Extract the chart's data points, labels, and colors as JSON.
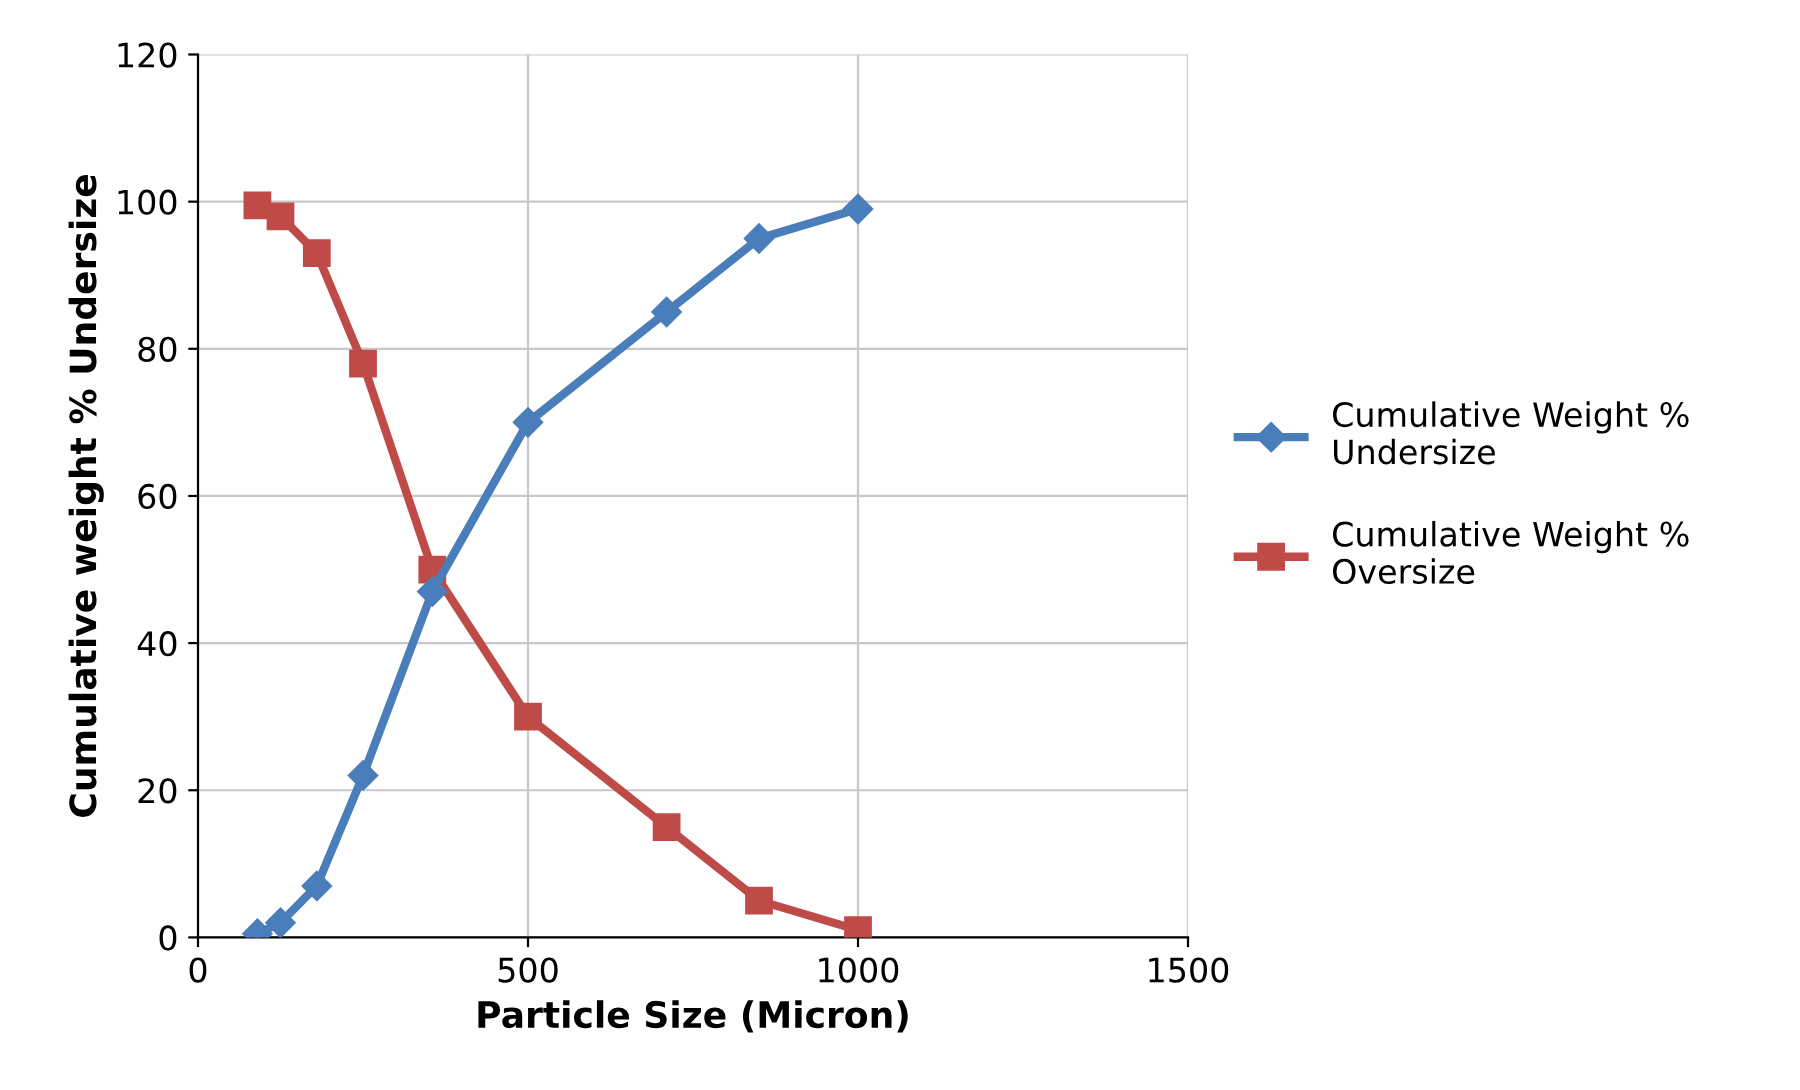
{
  "chart_data": {
    "type": "line",
    "xlabel": "Particle Size (Micron)",
    "ylabel": "Cumulative weight % Undersize",
    "x": [
      90,
      125,
      180,
      250,
      355,
      500,
      710,
      850,
      1000
    ],
    "series": [
      {
        "name": "Cumulative Weight % Undersize",
        "color": "#4a7ebb",
        "marker": "diamond",
        "values": [
          0.5,
          2,
          7,
          22,
          47,
          70,
          85,
          95,
          99
        ]
      },
      {
        "name": "Cumulative Weight % Oversize",
        "color": "#be4b48",
        "marker": "square",
        "values": [
          99.5,
          98,
          93,
          78,
          50,
          30,
          15,
          5,
          1
        ]
      }
    ],
    "xlim": [
      0,
      1500
    ],
    "xticks": [
      0,
      500,
      1000,
      1500
    ],
    "ylim": [
      0,
      120
    ],
    "yticks": [
      0,
      20,
      40,
      60,
      80,
      100,
      120
    ],
    "grid": true,
    "legend": "right",
    "line_style": "solid"
  }
}
